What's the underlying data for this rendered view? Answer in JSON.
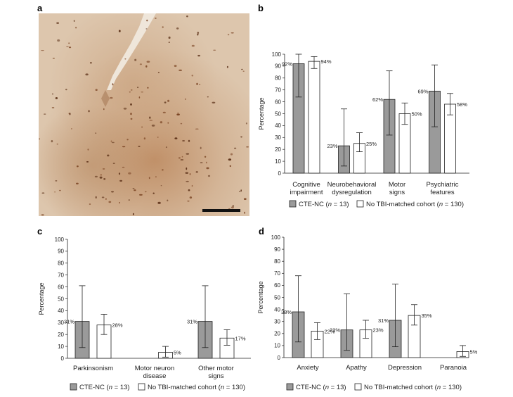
{
  "colors": {
    "cte": "#9a9a9a",
    "noTBI": "#ffffff",
    "stroke": "#222222"
  },
  "panel_a": {
    "letter": "a"
  },
  "chart_data": [
    {
      "id": "b",
      "letter": "b",
      "type": "bar",
      "ylabel": "Percentage",
      "ylim": [
        0,
        100
      ],
      "yticks": [
        0,
        10,
        20,
        30,
        40,
        50,
        60,
        70,
        80,
        90,
        100
      ],
      "categories": [
        [
          "Cognitive",
          "impairment"
        ],
        [
          "Neurobehavioral",
          "dysregulation"
        ],
        [
          "Motor",
          "signs"
        ],
        [
          "Psychiatric",
          "features"
        ]
      ],
      "series": [
        {
          "name": "CTE-NC",
          "n": "13",
          "values": [
            92,
            23,
            62,
            69
          ],
          "labels": [
            "92%",
            "23%",
            "62%",
            "69%"
          ],
          "err_low": [
            64,
            6,
            32,
            39
          ],
          "err_high": [
            100,
            54,
            86,
            91
          ]
        },
        {
          "name": "No TBI-matched cohort",
          "n": "130",
          "values": [
            94,
            25,
            50,
            58
          ],
          "labels": [
            "94%",
            "25%",
            "50%",
            "58%"
          ],
          "err_low": [
            88,
            18,
            41,
            49
          ],
          "err_high": [
            98,
            34,
            59,
            67
          ]
        }
      ],
      "legend": [
        {
          "prefix": "CTE-NC (",
          "n_label": "n",
          "suffix": " = 13)"
        },
        {
          "prefix": "No TBI-matched cohort (",
          "n_label": "n",
          "suffix": " = 130)"
        }
      ]
    },
    {
      "id": "c",
      "letter": "c",
      "type": "bar",
      "ylabel": "Percentage",
      "ylim": [
        0,
        100
      ],
      "yticks": [
        0,
        10,
        20,
        30,
        40,
        50,
        60,
        70,
        80,
        90,
        100
      ],
      "categories": [
        [
          "Parkinsonism"
        ],
        [
          "Motor neuron",
          "disease"
        ],
        [
          "Other motor",
          "signs"
        ]
      ],
      "series": [
        {
          "name": "CTE-NC",
          "n": "13",
          "values": [
            31,
            0,
            31
          ],
          "labels": [
            "31%",
            "",
            "31%"
          ],
          "err_low": [
            9,
            0,
            9
          ],
          "err_high": [
            61,
            0,
            61
          ]
        },
        {
          "name": "No TBI-matched cohort",
          "n": "130",
          "values": [
            28,
            5,
            17
          ],
          "labels": [
            "28%",
            "5%",
            "17%"
          ],
          "err_low": [
            20,
            1,
            11
          ],
          "err_high": [
            37,
            10,
            24
          ]
        }
      ],
      "legend": [
        {
          "prefix": "CTE-NC (",
          "n_label": "n",
          "suffix": " = 13)"
        },
        {
          "prefix": "No TBI-matched cohort (",
          "n_label": "n",
          "suffix": " = 130)"
        }
      ]
    },
    {
      "id": "d",
      "letter": "d",
      "type": "bar",
      "ylabel": "Percentage",
      "ylim": [
        0,
        100
      ],
      "yticks": [
        0,
        10,
        20,
        30,
        40,
        50,
        60,
        70,
        80,
        90,
        100
      ],
      "categories": [
        [
          "Anxiety"
        ],
        [
          "Apathy"
        ],
        [
          "Depression"
        ],
        [
          "Paranoia"
        ]
      ],
      "series": [
        {
          "name": "CTE-NC",
          "n": "13",
          "values": [
            38,
            23,
            31,
            0
          ],
          "labels": [
            "38%",
            "23%",
            "31%",
            ""
          ],
          "err_low": [
            13,
            6,
            9,
            0
          ],
          "err_high": [
            68,
            53,
            61,
            0
          ]
        },
        {
          "name": "No TBI-matched cohort",
          "n": "130",
          "values": [
            22,
            23,
            35,
            5
          ],
          "labels": [
            "22%",
            "23%",
            "35%",
            "5%"
          ],
          "err_low": [
            15,
            16,
            27,
            1
          ],
          "err_high": [
            29,
            31,
            44,
            10
          ]
        }
      ],
      "legend": [
        {
          "prefix": "CTE-NC (",
          "n_label": "n",
          "suffix": " = 13)"
        },
        {
          "prefix": "No TBI-matched cohort (",
          "n_label": "n",
          "suffix": " = 130)"
        }
      ]
    }
  ]
}
